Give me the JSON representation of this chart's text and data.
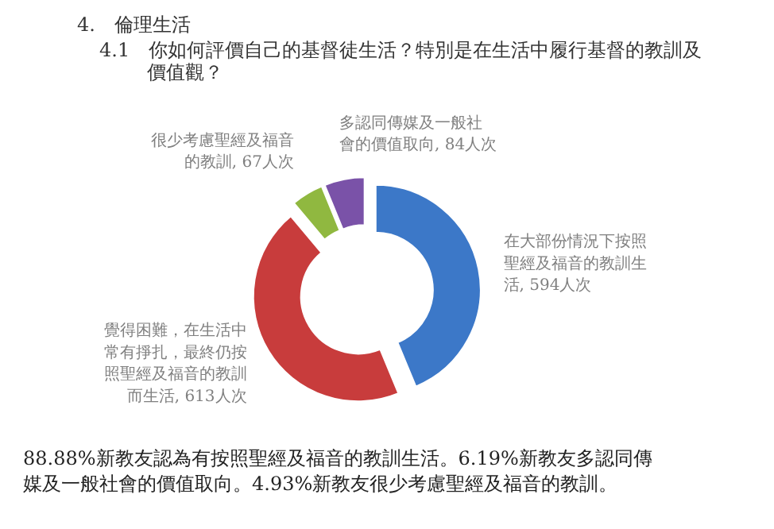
{
  "chart_data": {
    "type": "donut",
    "title": "4.　倫理生活",
    "subtitle": "4.1　你如何評價自己的基督徒生活？特別是在生活中履行基督的教訓及價值觀？",
    "categories": [
      "在大部份情況下按照聖經及福音的教訓生活",
      "覺得困難，在生活中常有掙扎，最終仍按照聖經及福音的教訓而生活",
      "很少考慮聖經及福音的教訓",
      "多認同傳媒及一般社會的價值取向"
    ],
    "values": [
      594,
      613,
      67,
      84
    ],
    "value_labels": [
      "594人次",
      "613人次",
      "67人次",
      "84人次"
    ],
    "colors": [
      "#3c78c8",
      "#c83c3c",
      "#90b840",
      "#7a52a8"
    ],
    "legend": false,
    "annotations": [
      "88.88%新教友認為有按照聖經及福音的教訓生活。6.19%新教友多認同傳媒及一般社會的價值取向。4.93%新教友很少考慮聖經及福音的教訓。"
    ]
  }
}
